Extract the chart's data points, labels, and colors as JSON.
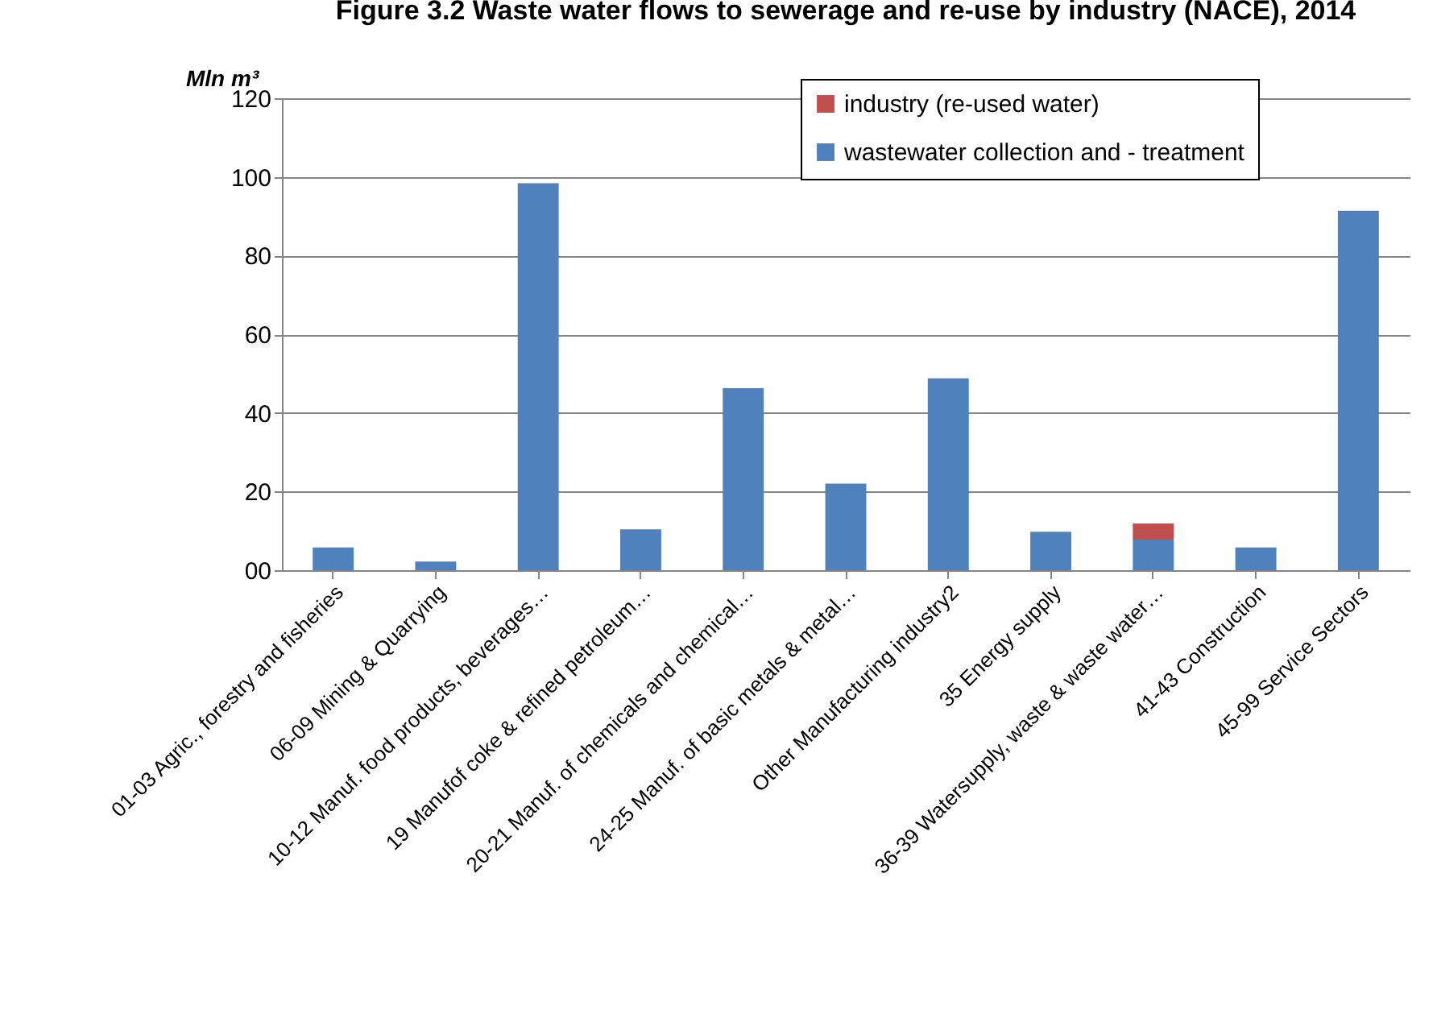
{
  "chart_data": {
    "type": "bar",
    "title": "Figure 3.2 Waste water flows to sewerage and re-use by industry (NACE), 2014",
    "ylabel": "Mln m³",
    "categories": [
      "01-03 Agric., forestry and fisheries",
      "06-09 Mining & Quarrying",
      "10-12 Manuf. food products, beverages…",
      "19 Manufof coke & refined petroleum…",
      "20-21 Manuf. of chemicals and chemical…",
      "24-25 Manuf. of basic metals & metal…",
      "Other Manufacturing industry2",
      "35 Energy supply",
      "36-39 Watersupply, waste & waste water…",
      "41-43 Construction",
      "45-99 Service Sectors"
    ],
    "series": [
      {
        "name": "wastewater collection and - treatment",
        "color": "#4f81bd",
        "values": [
          5.8,
          2.2,
          98.4,
          10.4,
          46.3,
          22,
          48.8,
          9.8,
          7.8,
          5.8,
          91.4
        ]
      },
      {
        "name": "industry (re-used water)",
        "color": "#c0504d",
        "values": [
          null,
          null,
          null,
          null,
          null,
          null,
          null,
          null,
          4.1,
          null,
          null
        ]
      }
    ],
    "stacked": true,
    "ylim": [
      0,
      120
    ],
    "yticks": [
      {
        "value": 0,
        "label": "00"
      },
      20,
      40,
      60,
      80,
      100,
      120
    ],
    "grid": "y",
    "legend": "top"
  }
}
